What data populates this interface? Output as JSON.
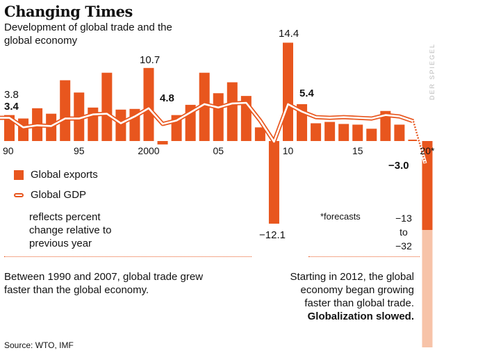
{
  "title": "Changing Times",
  "subtitle": "Development of global trade and the global economy",
  "chart_data": {
    "type": "bar",
    "x": [
      1990,
      1991,
      1992,
      1993,
      1994,
      1995,
      1996,
      1997,
      1998,
      1999,
      2000,
      2001,
      2002,
      2003,
      2004,
      2005,
      2006,
      2007,
      2008,
      2009,
      2010,
      2011,
      2012,
      2013,
      2014,
      2015,
      2016,
      2017,
      2018,
      2019,
      2020
    ],
    "x_ticks": [
      "90",
      "95",
      "2000",
      "05",
      "10",
      "15",
      "20*"
    ],
    "x_tick_years": [
      1990,
      1995,
      2000,
      2005,
      2010,
      2015,
      2020
    ],
    "series": [
      {
        "name": "Global exports",
        "values": [
          3.8,
          3.3,
          4.8,
          4.0,
          8.9,
          7.1,
          4.9,
          10.0,
          4.6,
          4.7,
          10.7,
          -0.5,
          3.8,
          5.3,
          10.0,
          7.0,
          8.6,
          6.6,
          2.0,
          -12.1,
          14.4,
          5.4,
          2.6,
          2.8,
          2.5,
          2.4,
          1.8,
          4.4,
          2.4,
          0.2,
          -13
        ]
      },
      {
        "name": "Global GDP",
        "values": [
          3.4,
          2.0,
          2.3,
          2.2,
          3.3,
          3.3,
          3.9,
          4.0,
          2.6,
          3.6,
          4.8,
          2.5,
          3.0,
          4.2,
          5.4,
          4.9,
          5.5,
          5.6,
          3.0,
          -0.1,
          5.4,
          4.3,
          3.5,
          3.4,
          3.5,
          3.4,
          3.3,
          3.8,
          3.6,
          2.9,
          -3.0
        ]
      }
    ],
    "labels": [
      {
        "text": "3.8"
      },
      {
        "text": "3.4"
      },
      {
        "text": "10.7"
      },
      {
        "text": "4.8"
      },
      {
        "text": "14.4"
      },
      {
        "text": "5.4"
      },
      {
        "text": "−12.1"
      },
      {
        "text": "−3.0"
      }
    ],
    "forecast_range": [
      "−13",
      "to",
      "−32"
    ]
  },
  "legend": {
    "exports": "Global exports",
    "gdp": "Global GDP"
  },
  "note": "reflects percent change relative to previous year",
  "forecast_note": "*forecasts",
  "text_left": "Between 1990 and 2007, global trade grew faster than the global economy.",
  "text_right_main": "Starting in 2012, the global economy began growing faster than global trade.",
  "text_right_bold": "Globalization slowed.",
  "source": "Source: WTO, IMF",
  "watermark": "DER SPIEGEL",
  "colors": {
    "accent": "#e8561e",
    "forecast_light": "#f7c3a8"
  }
}
